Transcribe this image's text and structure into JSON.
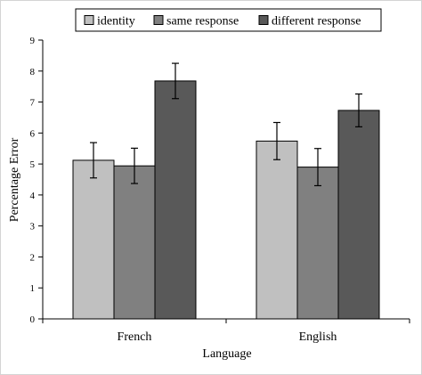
{
  "chart_data": {
    "type": "bar",
    "title": "",
    "xlabel": "Language",
    "ylabel": "Percentage Error",
    "ylim": [
      0,
      9
    ],
    "yticks": [
      0,
      1,
      2,
      3,
      4,
      5,
      6,
      7,
      8,
      9
    ],
    "categories": [
      "French",
      "English"
    ],
    "grid": false,
    "legend_position": "top",
    "series": [
      {
        "name": "identity",
        "color": "#c0c0c0",
        "values": [
          5.12,
          5.74
        ],
        "errors": [
          0.57,
          0.6
        ]
      },
      {
        "name": "same response",
        "color": "#808080",
        "values": [
          4.94,
          4.9
        ],
        "errors": [
          0.57,
          0.6
        ]
      },
      {
        "name": "different response",
        "color": "#595959",
        "values": [
          7.68,
          6.73
        ],
        "errors": [
          0.57,
          0.53
        ]
      }
    ]
  }
}
